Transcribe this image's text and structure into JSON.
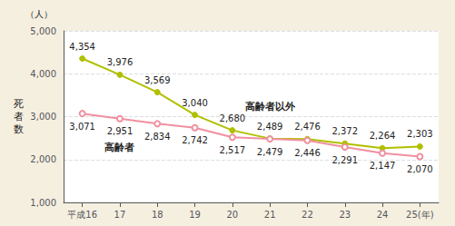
{
  "chart_data": {
    "type": "line",
    "categories": [
      "平成16",
      "17",
      "18",
      "19",
      "20",
      "21",
      "22",
      "23",
      "24",
      "25(年)"
    ],
    "series": [
      {
        "name": "高齢者以外",
        "color": "#b0c000",
        "marker": "circle",
        "values": [
          4354,
          3976,
          3569,
          3040,
          2680,
          2489,
          2476,
          2372,
          2264,
          2303
        ],
        "value_labels": [
          "4,354",
          "3,976",
          "3,569",
          "3,040",
          "2,680",
          "2,489",
          "2,476",
          "2,372",
          "2,264",
          "2,303"
        ]
      },
      {
        "name": "高齢者",
        "color": "#f090a0",
        "marker": "open_circle",
        "values": [
          3071,
          2951,
          2834,
          2742,
          2517,
          2479,
          2446,
          2291,
          2147,
          2070
        ],
        "value_labels": [
          "3,071",
          "2,951",
          "2,834",
          "2,742",
          "2,517",
          "2,479",
          "2,446",
          "2,291",
          "2,147",
          "2,070"
        ]
      }
    ],
    "y_label": "死\n者\n数",
    "y_unit": "（人）",
    "ylim": [
      1000,
      5000
    ],
    "yticks": [
      {
        "value": 1000,
        "label": "1,000"
      },
      {
        "value": 2000,
        "label": "2,000"
      },
      {
        "value": 3000,
        "label": "3,000"
      },
      {
        "value": 4000,
        "label": "4,000"
      },
      {
        "value": 5000,
        "label": "5,000"
      }
    ],
    "grid": true,
    "data_labels": true
  }
}
